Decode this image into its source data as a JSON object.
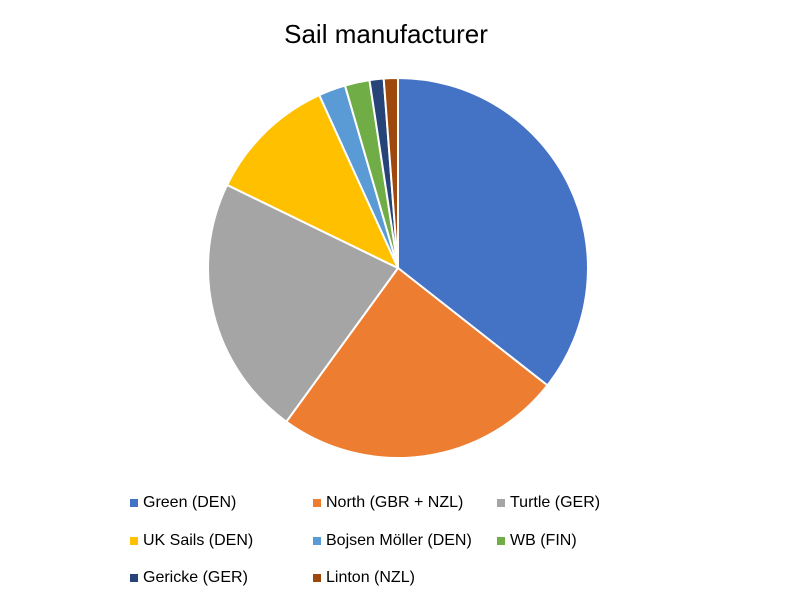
{
  "chart_data": {
    "type": "pie",
    "title": "Sail manufacturer",
    "series": [
      {
        "name": "Green (DEN)",
        "color": "#4472c4",
        "values": [
          35.6
        ]
      },
      {
        "name": "North (GBR + NZL)",
        "color": "#ed7d31",
        "values": [
          24.4
        ]
      },
      {
        "name": "Turtle (GER)",
        "color": "#a5a5a5",
        "values": [
          22.2
        ]
      },
      {
        "name": "UK Sails (DEN)",
        "color": "#ffc000",
        "values": [
          11
        ]
      },
      {
        "name": "Bojsen Möller (DEN)",
        "color": "#5b9bd5",
        "values": [
          2.3
        ]
      },
      {
        "name": "WB (FIN)",
        "color": "#70ad47",
        "values": [
          2.1
        ]
      },
      {
        "name": "Gericke (GER)",
        "color": "#264478",
        "values": [
          1.2
        ]
      },
      {
        "name": "Linton (NZL)",
        "color": "#9e480e",
        "values": [
          1.2
        ]
      }
    ]
  }
}
